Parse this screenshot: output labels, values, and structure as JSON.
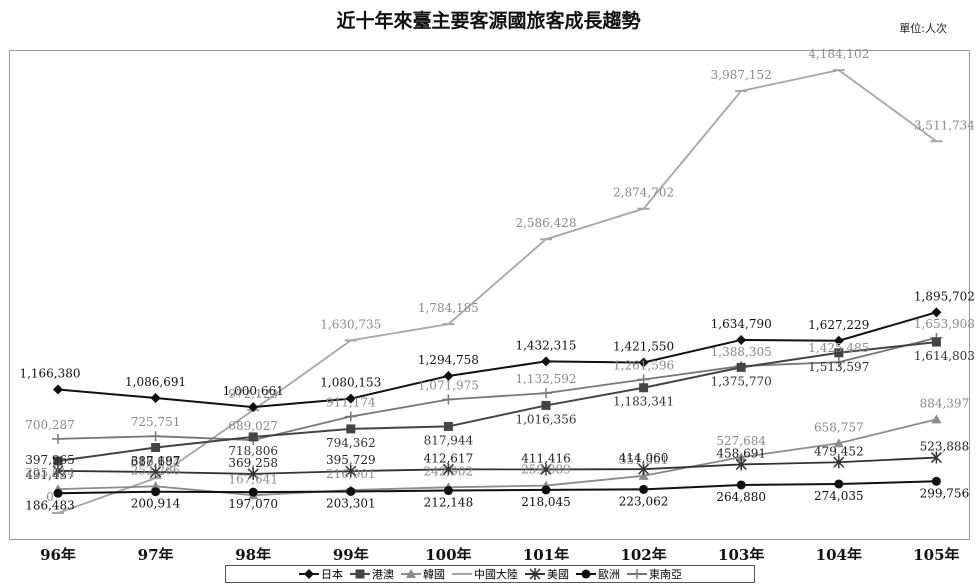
{
  "title": "近十年來臺主要客源國旅客成長趨勢",
  "unit": "單位:人次",
  "chart_data": {
    "type": "line",
    "categories": [
      "96年",
      "97年",
      "98年",
      "99年",
      "100年",
      "101年",
      "102年",
      "103年",
      "104年",
      "105年"
    ],
    "ylim": [
      0,
      4400000
    ],
    "grid": false,
    "legend_position": "bottom",
    "series": [
      {
        "name": "日本",
        "color": "#111111",
        "marker": "diamond",
        "values": [
          1166380,
          1086691,
          1000661,
          1080153,
          1294758,
          1432315,
          1421550,
          1634790,
          1627229,
          1895702
        ],
        "labels": [
          "1,166,380",
          "1,086,691",
          "1,000,661",
          "1,080,153",
          "1,294,758",
          "1,432,315",
          "1,421,550",
          "1,634,790",
          "1,627,229",
          "1,895,702"
        ]
      },
      {
        "name": "港澳",
        "color": "#444444",
        "marker": "square",
        "values": [
          491437,
          618667,
          718806,
          794362,
          817944,
          1016356,
          1183341,
          1375770,
          1513597,
          1614803
        ],
        "labels": [
          "491,437",
          "618,667",
          "718,806",
          "794,362",
          "817,944",
          "1,016,356",
          "1,183,341",
          "1,375,770",
          "1,513,597",
          "1,614,803"
        ]
      },
      {
        "name": "韓國",
        "color": "#8c8c8c",
        "marker": "triangle",
        "values": [
          225814,
          252266,
          167641,
          216901,
          242902,
          259089,
          351301,
          527684,
          658757,
          884397
        ],
        "labels": [
          "225,814",
          "252,266",
          "167,641",
          "216,901",
          "242,902",
          "259,089",
          "351,301",
          "527,684",
          "658,757",
          "884,397"
        ]
      },
      {
        "name": "中國大陸",
        "color": "#a6a6a6",
        "marker": "dash",
        "values": [
          0,
          329204,
          972123,
          1630735,
          1784185,
          2586428,
          2874702,
          3987152,
          4184102,
          3511734
        ],
        "labels": [
          "0",
          "329,204",
          "972,123",
          "1,630,735",
          "1,784,185",
          "2,586,428",
          "2,874,702",
          "3,987,152",
          "4,184,102",
          "3,511,734"
        ]
      },
      {
        "name": "美國",
        "color": "#333333",
        "marker": "star",
        "values": [
          397965,
          387197,
          369258,
          395729,
          412617,
          411416,
          414060,
          458691,
          479452,
          523888
        ],
        "labels": [
          "397,965",
          "387,197",
          "369,258",
          "395,729",
          "412,617",
          "411,416",
          "414,060",
          "458,691",
          "479,452",
          "523,888"
        ]
      },
      {
        "name": "歐洲",
        "color": "#111111",
        "marker": "circle",
        "values": [
          186483,
          200914,
          197070,
          203301,
          212148,
          218045,
          223062,
          264880,
          274035,
          299756
        ],
        "labels": [
          "186,483",
          "200,914",
          "197,070",
          "203,301",
          "212,148",
          "218,045",
          "223,062",
          "264,880",
          "274,035",
          "299,756"
        ]
      },
      {
        "name": "東南亞",
        "color": "#777777",
        "marker": "plus",
        "values": [
          700287,
          725751,
          689027,
          911174,
          1071975,
          1132592,
          1261596,
          1388305,
          1425485,
          1653908
        ],
        "labels": [
          "700,287",
          "725,751",
          "689,027",
          "911,174",
          "1,071,975",
          "1,132,592",
          "1,261,596",
          "1,388,305",
          "1,425,485",
          "1,653,908"
        ]
      }
    ]
  }
}
